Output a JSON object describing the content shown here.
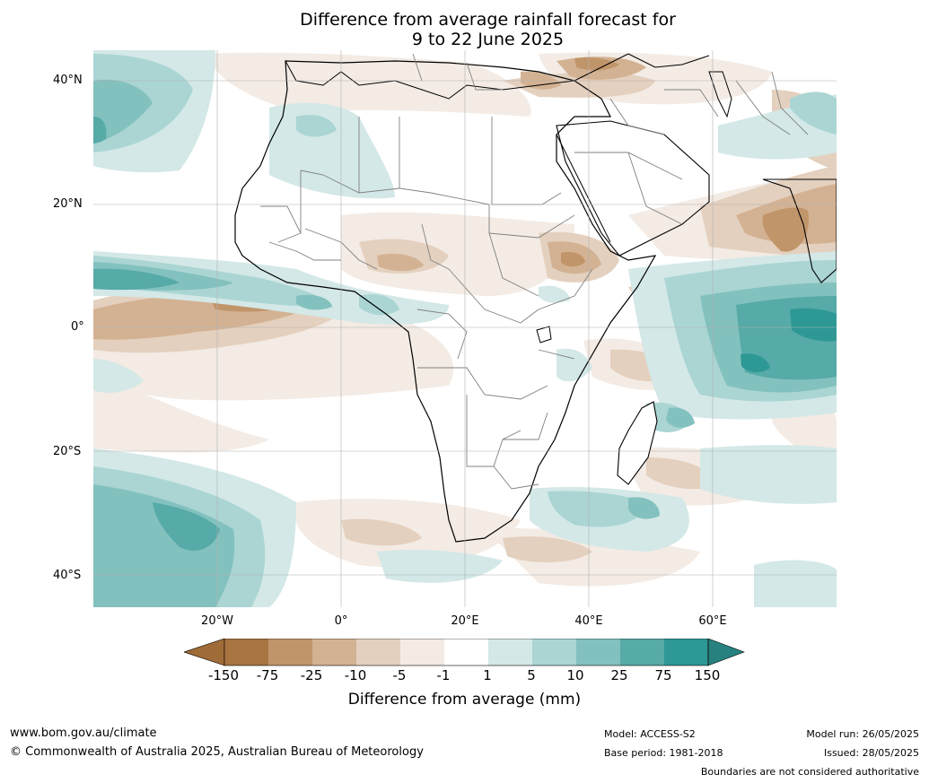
{
  "title": {
    "line1": "Difference from average rainfall forecast for",
    "line2": "9 to 22 June 2025"
  },
  "axes": {
    "lat_labels": [
      "40°N",
      "20°N",
      "0°",
      "20°S",
      "40°S"
    ],
    "lon_labels": [
      "20°W",
      "0°",
      "20°E",
      "40°E",
      "60°E"
    ]
  },
  "colorbar": {
    "ticks": [
      "-150",
      "-75",
      "-25",
      "-10",
      "-5",
      "-1",
      "1",
      "5",
      "10",
      "25",
      "75",
      "150"
    ],
    "label": "Difference from average (mm)",
    "colors": {
      "below_min": "#9f6b36",
      "bins": [
        "#a87440",
        "#c1956a",
        "#d3b293",
        "#e4d0be",
        "#f3ebe4",
        "#ffffff",
        "#d3e8e7",
        "#aad5d3",
        "#82c1be",
        "#56aaa8",
        "#2e9895"
      ],
      "above_max": "#27827f"
    }
  },
  "footer": {
    "website": "www.bom.gov.au/climate",
    "copyright": "© Commonwealth of Australia 2025, Australian Bureau of Meteorology",
    "model": "Model: ACCESS-S2",
    "base_period": "Base period: 1981-2018",
    "model_run": "Model run: 26/05/2025",
    "issued": "Issued: 28/05/2025",
    "boundaries_note": "Boundaries are not considered authoritative"
  }
}
